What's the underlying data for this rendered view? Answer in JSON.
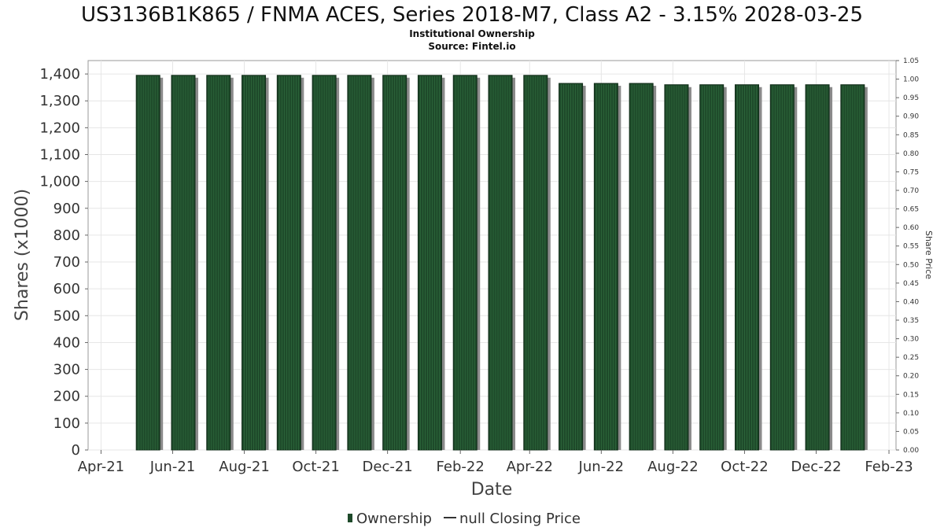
{
  "chart_data": {
    "type": "bar",
    "title": "US3136B1K865 / FNMA ACES, Series 2018-M7, Class A2 - 3.15% 2028-03-25",
    "subtitle_lines": [
      "Institutional Ownership",
      "Source: Fintel.io"
    ],
    "xlabel": "Date",
    "ylabel": "Shares (x1000)",
    "y2label": "Share Price",
    "ylim": [
      0,
      1450
    ],
    "y_ticks": [
      0,
      100,
      200,
      300,
      400,
      500,
      600,
      700,
      800,
      900,
      1000,
      1100,
      1200,
      1300,
      1400
    ],
    "y_tick_labels": [
      "0",
      "100",
      "200",
      "300",
      "400",
      "500",
      "600",
      "700",
      "800",
      "900",
      "1,000",
      "1,100",
      "1,200",
      "1,300",
      "1,400"
    ],
    "y2lim": [
      0,
      1.05
    ],
    "y2_tick_labels": [
      "0.00",
      "0.05",
      "0.10",
      "0.15",
      "0.20",
      "0.25",
      "0.30",
      "0.35",
      "0.40",
      "0.45",
      "0.50",
      "0.55",
      "0.60",
      "0.65",
      "0.70",
      "0.75",
      "0.80",
      "0.85",
      "0.90",
      "0.95",
      "1.00",
      "1.05"
    ],
    "xlim": [
      "2021-03-21",
      "2023-02-07"
    ],
    "x_ticks": [
      "2021-04-01",
      "2021-06-01",
      "2021-08-01",
      "2021-10-01",
      "2021-12-01",
      "2022-02-01",
      "2022-04-01",
      "2022-06-01",
      "2022-08-01",
      "2022-10-01",
      "2022-12-01",
      "2023-02-01"
    ],
    "x_tick_labels": [
      "Apr-21",
      "Jun-21",
      "Aug-21",
      "Oct-21",
      "Dec-21",
      "Feb-22",
      "Apr-22",
      "Jun-22",
      "Aug-22",
      "Oct-22",
      "Dec-22",
      "Feb-23"
    ],
    "grid": true,
    "legend_position": "bottom-center",
    "series": [
      {
        "name": "Ownership",
        "color": "#1e4a2a",
        "x": [
          "2021-05-01",
          "2021-05-31",
          "2021-06-30",
          "2021-07-30",
          "2021-08-29",
          "2021-09-28",
          "2021-10-28",
          "2021-11-27",
          "2021-12-27",
          "2022-01-26",
          "2022-02-25",
          "2022-03-27",
          "2022-04-26",
          "2022-05-26",
          "2022-06-25",
          "2022-07-25",
          "2022-08-24",
          "2022-09-23",
          "2022-10-23",
          "2022-11-22",
          "2022-12-22"
        ],
        "values": [
          1395,
          1395,
          1395,
          1395,
          1395,
          1395,
          1395,
          1395,
          1395,
          1395,
          1395,
          1395,
          1365,
          1365,
          1365,
          1360,
          1360,
          1360,
          1360,
          1360,
          1360
        ]
      },
      {
        "name": "null Closing Price",
        "color": "#333333",
        "values": []
      }
    ]
  }
}
